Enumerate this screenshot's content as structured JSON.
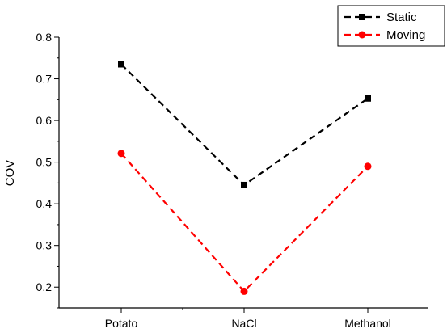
{
  "chart_data": {
    "type": "line",
    "title": "",
    "xlabel": "",
    "ylabel": "COV",
    "categories": [
      "Potato",
      "NaCl",
      "Methanol"
    ],
    "ylim": [
      0.15,
      0.8
    ],
    "yticks": [
      "0.2",
      "0.3",
      "0.4",
      "0.5",
      "0.6",
      "0.7",
      "0.8"
    ],
    "grid": false,
    "legend_position": "top-right",
    "series": [
      {
        "name": "Static",
        "values": [
          0.735,
          0.445,
          0.653
        ],
        "color": "#000000",
        "marker": "square",
        "line_style": "dashed"
      },
      {
        "name": "Moving",
        "values": [
          0.521,
          0.19,
          0.49
        ],
        "color": "#ff0000",
        "marker": "circle",
        "line_style": "dashed"
      }
    ]
  }
}
